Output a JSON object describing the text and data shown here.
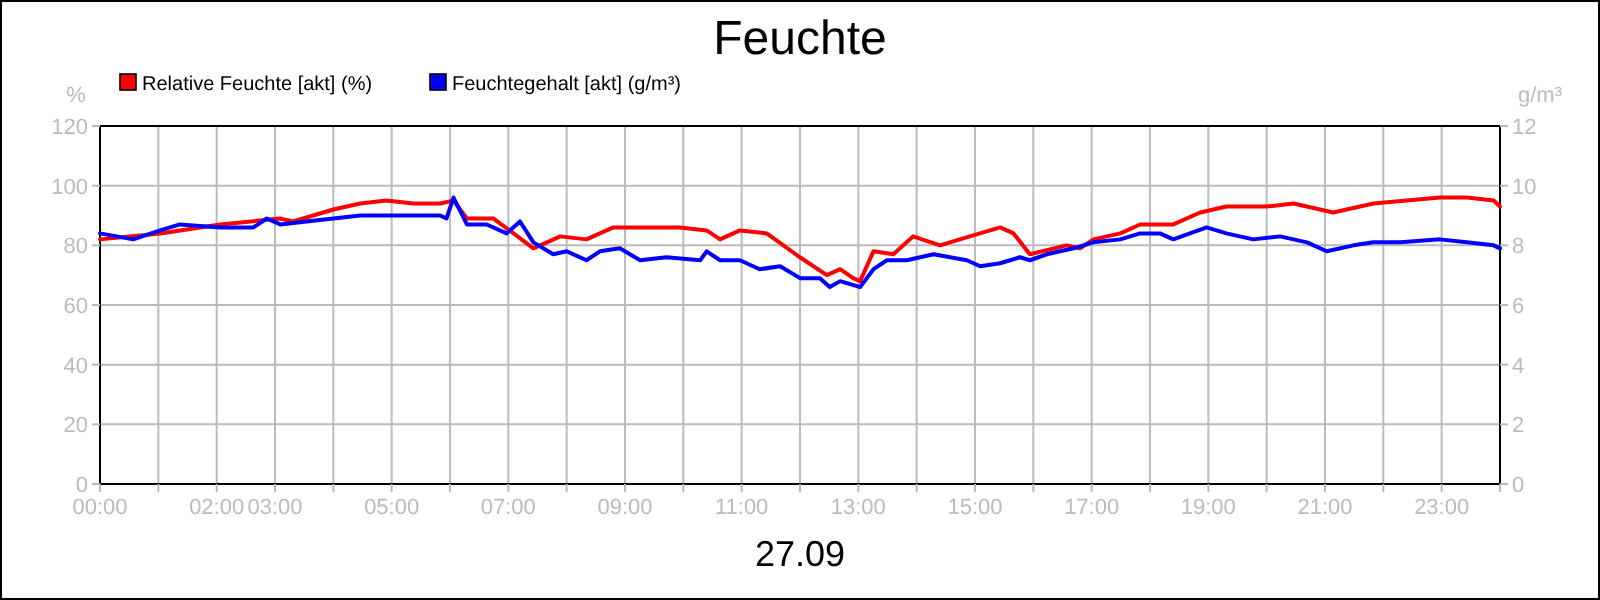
{
  "chart_data": {
    "type": "line",
    "title": "Feuchte",
    "xlabel": "27.09",
    "ylabel": "%",
    "y2label": "g/m³",
    "xlim": [
      0,
      24
    ],
    "xticks": [
      {
        "value": 0,
        "label": "00:00"
      },
      {
        "value": 1,
        "label": null
      },
      {
        "value": 2,
        "label": "02:00"
      },
      {
        "value": 3,
        "label": "03:00"
      },
      {
        "value": 4,
        "label": null
      },
      {
        "value": 5,
        "label": "05:00"
      },
      {
        "value": 6,
        "label": null
      },
      {
        "value": 7,
        "label": "07:00"
      },
      {
        "value": 8,
        "label": null
      },
      {
        "value": 9,
        "label": "09:00"
      },
      {
        "value": 10,
        "label": null
      },
      {
        "value": 11,
        "label": "11:00"
      },
      {
        "value": 12,
        "label": null
      },
      {
        "value": 13,
        "label": "13:00"
      },
      {
        "value": 14,
        "label": null
      },
      {
        "value": 15,
        "label": "15:00"
      },
      {
        "value": 16,
        "label": null
      },
      {
        "value": 17,
        "label": "17:00"
      },
      {
        "value": 18,
        "label": null
      },
      {
        "value": 19,
        "label": "19:00"
      },
      {
        "value": 20,
        "label": null
      },
      {
        "value": 21,
        "label": "21:00"
      },
      {
        "value": 22,
        "label": null
      },
      {
        "value": 23,
        "label": "23:00"
      },
      {
        "value": 24,
        "label": null
      }
    ],
    "ylim": [
      0,
      120
    ],
    "yticks": [
      0,
      20,
      40,
      60,
      80,
      100,
      120
    ],
    "y2lim": [
      0,
      12
    ],
    "y2ticks": [
      0,
      2,
      4,
      6,
      8,
      10,
      12
    ],
    "grid": true,
    "legend": "top left",
    "marker": "none",
    "line_style": "solid",
    "series": [
      {
        "name": "Relative Feuchte [akt] (%)",
        "color": "#ff0000",
        "x": [
          0,
          1.03,
          2.06,
          3.09,
          3.31,
          4.0,
          4.46,
          4.91,
          5.37,
          5.83,
          6.06,
          6.29,
          6.74,
          7.09,
          7.43,
          7.89,
          8.34,
          8.8,
          9.26,
          9.94,
          10.4,
          10.63,
          10.97,
          11.43,
          12.0,
          12.46,
          12.69,
          12.91,
          13.03,
          13.26,
          13.6,
          13.94,
          14.4,
          14.74,
          15.43,
          15.66,
          15.94,
          16.57,
          16.8,
          17.03,
          17.49,
          17.83,
          18.4,
          18.86,
          19.31,
          20.0,
          20.46,
          21.14,
          21.83,
          22.97,
          23.43,
          23.89,
          24
        ],
        "values": [
          82,
          84,
          87,
          89,
          88,
          92,
          94,
          95,
          94,
          94,
          95,
          89,
          89,
          84,
          79,
          83,
          82,
          86,
          86,
          86,
          85,
          82,
          85,
          84,
          76,
          70,
          72,
          69,
          68,
          78,
          77,
          83,
          80,
          82,
          86,
          84,
          77,
          80,
          79,
          82,
          84,
          87,
          87,
          91,
          93,
          93,
          94,
          91,
          94,
          96,
          96,
          95,
          93
        ]
      },
      {
        "name": "Feuchtegehalt [akt] (g/m³)",
        "color": "#0000ff",
        "axis": "y2",
        "x": [
          0,
          0.57,
          1.03,
          1.37,
          2.06,
          2.63,
          2.86,
          3.09,
          3.54,
          4.0,
          4.46,
          5.14,
          5.83,
          5.94,
          6.06,
          6.29,
          6.63,
          6.97,
          7.2,
          7.43,
          7.77,
          8.0,
          8.34,
          8.57,
          8.91,
          9.26,
          9.71,
          10.29,
          10.4,
          10.63,
          10.97,
          11.31,
          11.66,
          12.0,
          12.34,
          12.51,
          12.69,
          13.03,
          13.26,
          13.49,
          13.83,
          14.29,
          14.86,
          15.09,
          15.43,
          15.77,
          15.94,
          16.23,
          16.69,
          17.03,
          17.49,
          17.83,
          18.17,
          18.4,
          18.97,
          19.31,
          19.77,
          20.23,
          20.69,
          21.03,
          21.49,
          21.83,
          22.29,
          22.97,
          23.43,
          23.89,
          24
        ],
        "values": [
          8.4,
          8.2,
          8.5,
          8.7,
          8.6,
          8.6,
          8.9,
          8.7,
          8.8,
          8.9,
          9.0,
          9.0,
          9.0,
          8.9,
          9.6,
          8.7,
          8.7,
          8.4,
          8.8,
          8.1,
          7.7,
          7.8,
          7.5,
          7.8,
          7.9,
          7.5,
          7.6,
          7.5,
          7.8,
          7.5,
          7.5,
          7.2,
          7.3,
          6.9,
          6.9,
          6.6,
          6.8,
          6.6,
          7.2,
          7.5,
          7.5,
          7.7,
          7.5,
          7.3,
          7.4,
          7.6,
          7.5,
          7.7,
          7.9,
          8.1,
          8.2,
          8.4,
          8.4,
          8.2,
          8.6,
          8.4,
          8.2,
          8.3,
          8.1,
          7.8,
          8.0,
          8.1,
          8.1,
          8.2,
          8.1,
          8.0,
          7.9
        ]
      }
    ]
  }
}
